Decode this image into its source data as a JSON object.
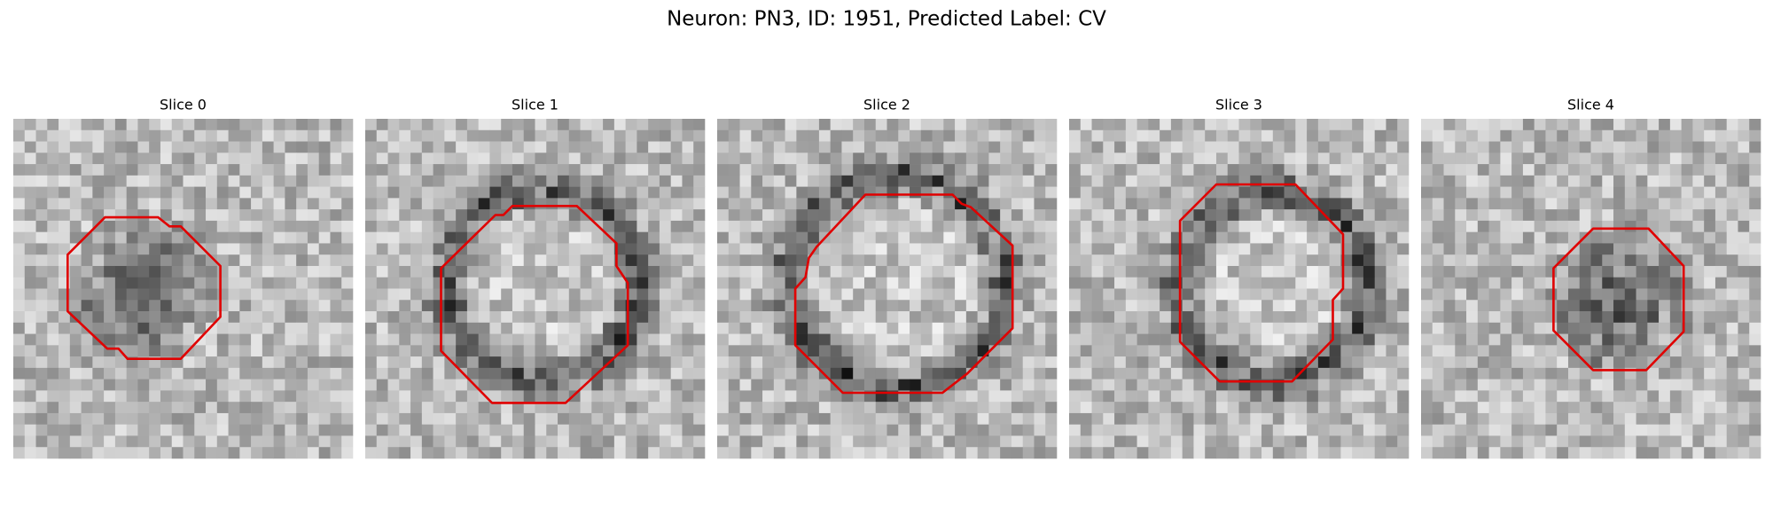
{
  "title": "Neuron: PN3, ID: 1951, Predicted Label: CV",
  "panels": [
    {
      "title": "Slice 0"
    },
    {
      "title": "Slice 1"
    },
    {
      "title": "Slice 2"
    },
    {
      "title": "Slice 3"
    },
    {
      "title": "Slice 4"
    }
  ]
}
